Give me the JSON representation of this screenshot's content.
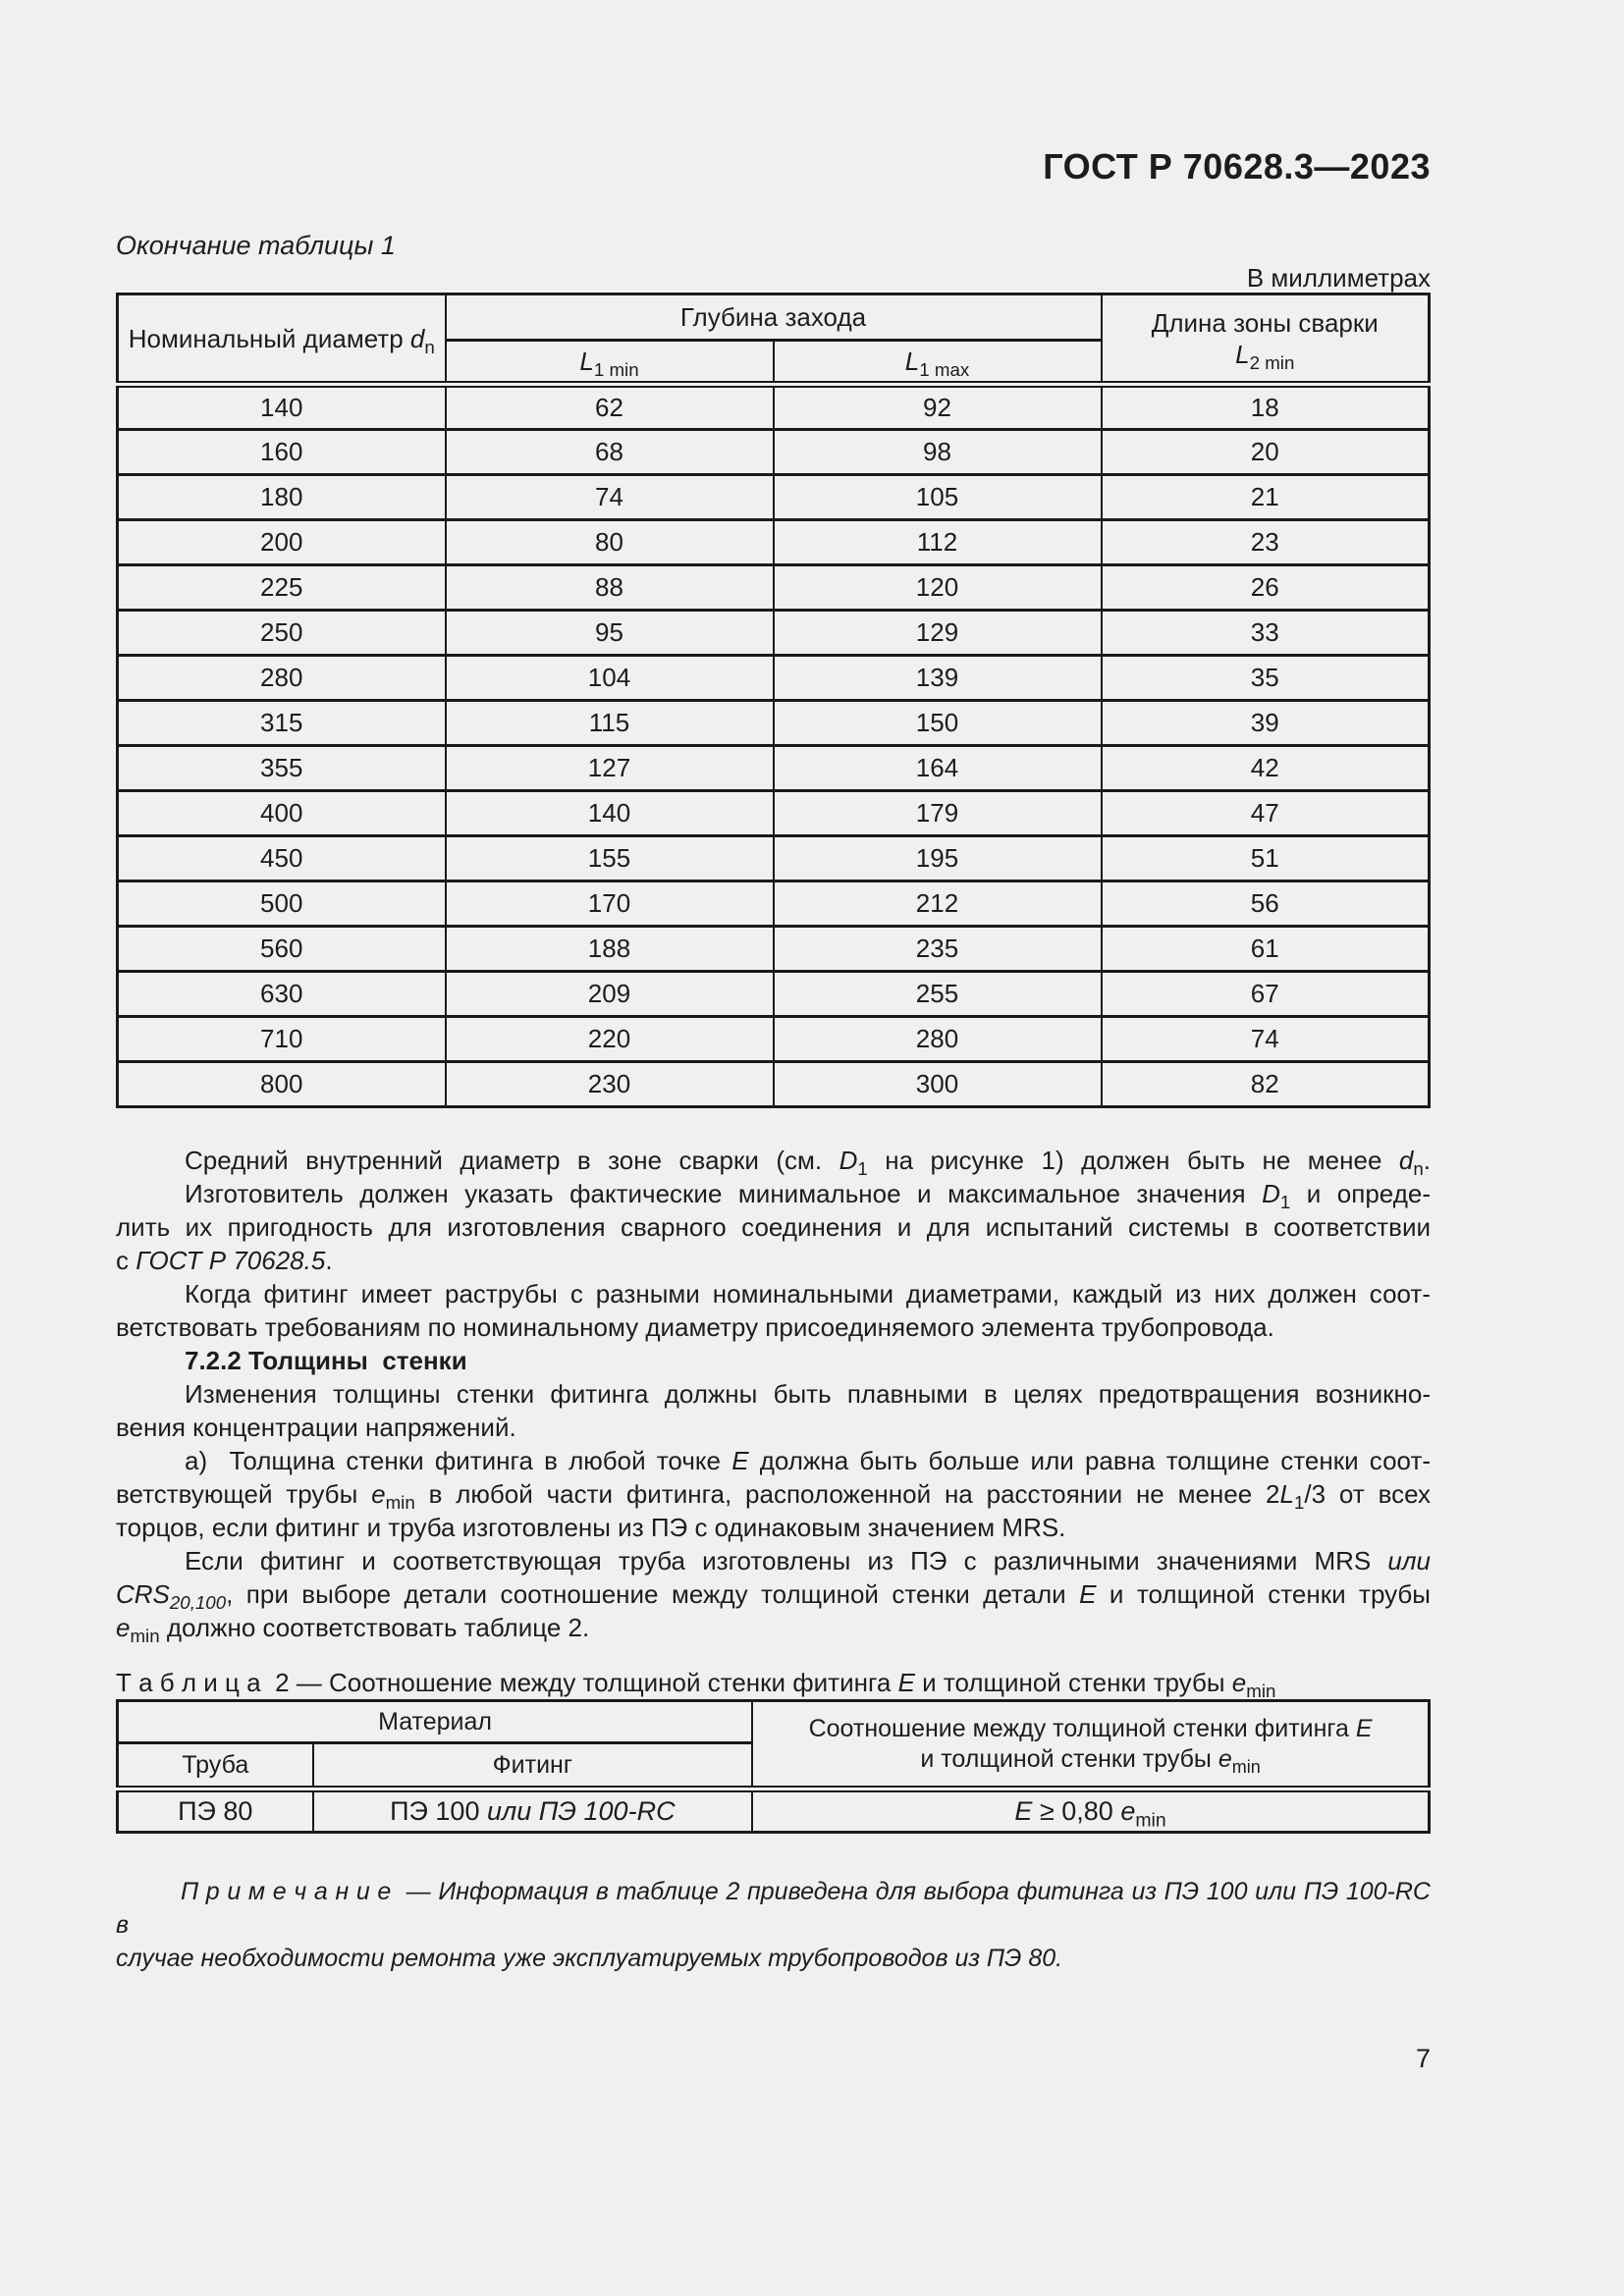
{
  "page": {
    "doc_number": "ГОСТ Р 70628.3—2023",
    "page_number": "7"
  },
  "table1": {
    "continuation_label": "Окончание таблицы 1",
    "units_label": "В миллиметрах",
    "col_diameter": "Номинальный диаметр {i}d{/i}{sub}n{/sub}",
    "col_depth_group": "Глубина захода",
    "col_l1min": "{i}L{/i}{sub}1 min{/sub}",
    "col_l1max": "{i}L{/i}{sub}1 max{/sub}",
    "col_weld_line1": "Длина зоны сварки",
    "col_weld_line2": "{i}L{/i}{sub}2 min{/sub}",
    "rows": [
      [
        "140",
        "62",
        "92",
        "18"
      ],
      [
        "160",
        "68",
        "98",
        "20"
      ],
      [
        "180",
        "74",
        "105",
        "21"
      ],
      [
        "200",
        "80",
        "112",
        "23"
      ],
      [
        "225",
        "88",
        "120",
        "26"
      ],
      [
        "250",
        "95",
        "129",
        "33"
      ],
      [
        "280",
        "104",
        "139",
        "35"
      ],
      [
        "315",
        "115",
        "150",
        "39"
      ],
      [
        "355",
        "127",
        "164",
        "42"
      ],
      [
        "400",
        "140",
        "179",
        "47"
      ],
      [
        "450",
        "155",
        "195",
        "51"
      ],
      [
        "500",
        "170",
        "212",
        "56"
      ],
      [
        "560",
        "188",
        "235",
        "61"
      ],
      [
        "630",
        "209",
        "255",
        "67"
      ],
      [
        "710",
        "220",
        "280",
        "74"
      ],
      [
        "800",
        "230",
        "300",
        "82"
      ]
    ]
  },
  "paragraphs": [
    {
      "lines": [
        {
          "t": "Средний внутренний диаметр в зоне сварки (см. {i}D{/i}{sub}1{/sub} на рисунке 1) должен быть не менее {i}d{/i}{sub}n{/sub}.",
          "ind": true,
          "last": false
        }
      ]
    },
    {
      "lines": [
        {
          "t": "Изготовитель должен указать фактические минимальное и максимальное значения {i}D{/i}{sub}1{/sub} и опреде-",
          "ind": true,
          "last": false
        },
        {
          "t": "лить их пригодность для изготовления сварного соединения и для испытаний системы в соответствии",
          "ind": false,
          "last": false
        },
        {
          "t": "с {i}ГОСТ Р 70628.5{/i}.",
          "ind": false,
          "last": true
        }
      ]
    },
    {
      "lines": [
        {
          "t": "Когда фитинг имеет раструбы с разными номинальными диаметрами, каждый из них должен соот-",
          "ind": true,
          "last": false
        },
        {
          "t": "ветствовать требованиям по номинальному диаметру присоединяемого элемента трубопровода.",
          "ind": false,
          "last": true
        }
      ]
    },
    {
      "lines": [
        {
          "t": "7.2.2 Толщины  стенки",
          "ind": true,
          "last": true,
          "bold": true
        }
      ]
    },
    {
      "lines": [
        {
          "t": "Изменения толщины стенки фитинга должны быть плавными в целях предотвращения возникно-",
          "ind": true,
          "last": false
        },
        {
          "t": "вения концентрации напряжений.",
          "ind": false,
          "last": true
        }
      ]
    },
    {
      "lines": [
        {
          "t": "а)  Толщина стенки фитинга в любой точке {i}E{/i} должна быть больше или равна толщине стенки соот-",
          "ind": true,
          "last": false
        },
        {
          "t": "ветствующей трубы {i}e{/i}{sub}min{/sub} в любой части фитинга, расположенной на расстоянии не менее 2{i}L{/i}{sub}1{/sub}/3 от всех",
          "ind": false,
          "last": false
        },
        {
          "t": "торцов, если фитинг и труба изготовлены из ПЭ с одинаковым значением MRS.",
          "ind": false,
          "last": true
        }
      ]
    },
    {
      "lines": [
        {
          "t": "Если фитинг и соответствующая труба изготовлены из ПЭ с различными значениями MRS {i}или{/i}",
          "ind": true,
          "last": false
        },
        {
          "t": "{i}CRS{/i}{sub}{i}20,100{/i}{/sub}, при выборе детали соотношение между толщиной стенки детали {i}E{/i} и толщиной стенки трубы",
          "ind": false,
          "last": false
        },
        {
          "t": "{i}e{/i}{sub}min{/sub} должно соответствовать таблице 2.",
          "ind": false,
          "last": true
        }
      ]
    }
  ],
  "table2": {
    "caption": "Т а б л и ц а  2 — Соотношение между толщиной стенки фитинга {i}E{/i} и толщиной стенки трубы {i}e{/i}{sub}min{/sub}",
    "col_material": "Материал",
    "col_ratio_line1": "Соотношение между толщиной стенки фитинга {i}E{/i}",
    "col_ratio_line2": "и толщиной стенки трубы {i}e{/i}{sub}min{/sub}",
    "col_pipe": "Труба",
    "col_fitting": "Фитинг",
    "row": {
      "pipe": "ПЭ 80",
      "fitting": "ПЭ 100 {i}или ПЭ 100-RC{/i}",
      "ratio": "{i}E{/i} ≥ 0,80 {i}e{/i}{sub}min{/sub}"
    }
  },
  "note": {
    "lines": [
      {
        "t": "П р и м е ч а н и е  — Информация в таблице 2 приведена для выбора фитинга из ПЭ 100 или ПЭ 100-RC в",
        "ind": true,
        "last": false
      },
      {
        "t": "случае необходимости ремонта уже эксплуатируемых трубопроводов из ПЭ 80.",
        "ind": false,
        "last": true
      }
    ]
  }
}
